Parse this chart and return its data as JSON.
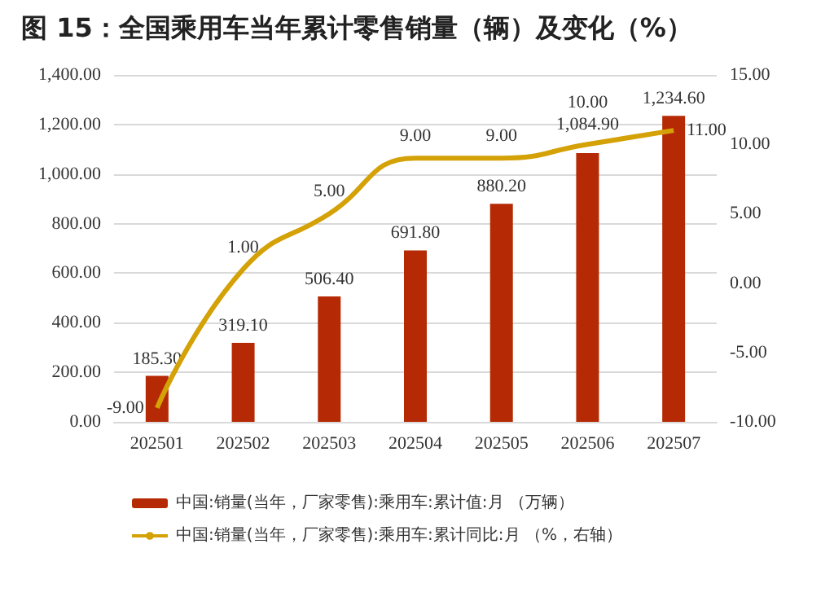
{
  "chart_data": {
    "type": "bar",
    "title": "图 15：全国乘用车当年累计零售销量（辆）及变化（%）",
    "categories": [
      "202501",
      "202502",
      "202503",
      "202504",
      "202505",
      "202506",
      "202507"
    ],
    "series": [
      {
        "name": "中国:销量(当年，厂家零售):乘用车:累计值:月 （万辆）",
        "color": "#b52a05",
        "values": [
          185.3,
          319.1,
          506.4,
          691.8,
          880.2,
          1084.9,
          1234.6
        ],
        "value_labels": [
          "185.30",
          "319.10",
          "506.40",
          "691.80",
          "880.20",
          "1,084.90",
          "1,234.60"
        ]
      },
      {
        "name": "中国:销量(当年，厂家零售):乘用车:累计同比:月 （%，右轴）",
        "type": "line",
        "axis": "y2",
        "color": "#d4a106",
        "values": [
          -9,
          1,
          5,
          9,
          9,
          10,
          11
        ],
        "value_labels": [
          "-9.00",
          "1.00",
          "5.00",
          "9.00",
          "9.00",
          "10.00",
          "11.00"
        ]
      }
    ],
    "ylim": [
      0,
      1400
    ],
    "yticks": [
      {
        "value": 0,
        "label": "0.00"
      },
      {
        "value": 200,
        "label": "200.00"
      },
      {
        "value": 400,
        "label": "400.00"
      },
      {
        "value": 600,
        "label": "600.00"
      },
      {
        "value": 800,
        "label": "800.00"
      },
      {
        "value": 1000,
        "label": "1,000.00"
      },
      {
        "value": 1200,
        "label": "1,200.00"
      },
      {
        "value": 1400,
        "label": "1,400.00"
      }
    ],
    "y2lim": [
      -10,
      15
    ],
    "y2ticks": [
      {
        "value": -10,
        "label": "-10.00"
      },
      {
        "value": -5,
        "label": "-5.00"
      },
      {
        "value": 0,
        "label": "0.00"
      },
      {
        "value": 5,
        "label": "5.00"
      },
      {
        "value": 10,
        "label": "10.00"
      },
      {
        "value": 15,
        "label": "15.00"
      }
    ],
    "grid": "y",
    "legend": "bottom",
    "marker": "none"
  }
}
